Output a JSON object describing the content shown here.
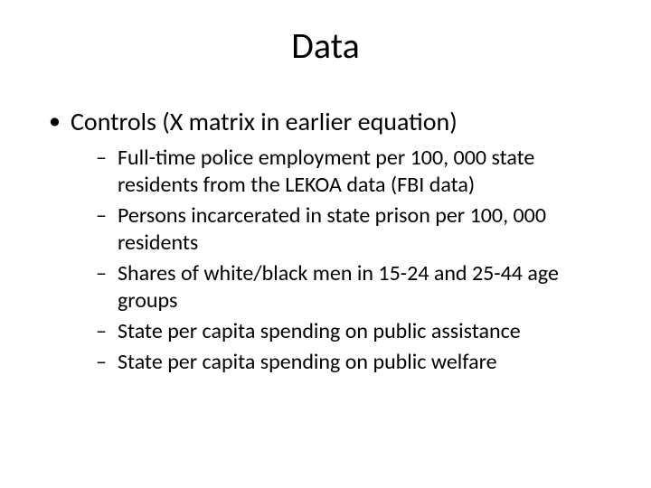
{
  "slide": {
    "title": "Data",
    "bullet1": {
      "text": "Controls (X matrix in earlier equation)",
      "subitems": [
        "Full-time police employment per 100, 000 state residents from the LEKOA data (FBI data)",
        "Persons incarcerated in state prison per 100, 000 residents",
        "Shares of white/black men in 15-24 and 25-44 age groups",
        "State per capita spending on public assistance",
        "State per capita spending on public welfare"
      ]
    }
  },
  "style": {
    "background_color": "#ffffff",
    "text_color": "#000000",
    "font_family": "Calibri",
    "title_fontsize": 40,
    "level1_fontsize": 28,
    "level2_fontsize": 24,
    "level1_marker": "•",
    "level2_marker": "–"
  }
}
